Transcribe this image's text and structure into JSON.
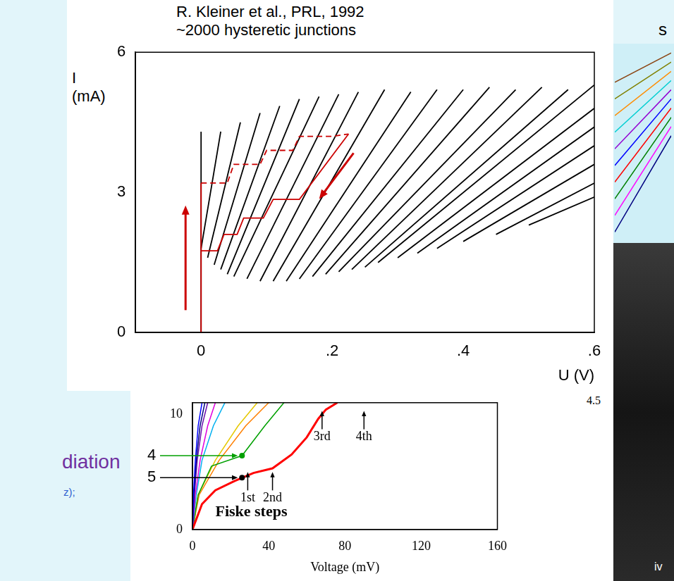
{
  "chart_data": [
    {
      "type": "line",
      "title": "R. Kleiner et al., PRL, 1992",
      "subtitle": "~2000 hysteretic junctions",
      "x_label": "U (V)",
      "y_label": [
        "I",
        "(mA)"
      ],
      "xlim": [
        -0.1,
        0.6
      ],
      "ylim": [
        0,
        6
      ],
      "xticks": [
        0,
        {
          "value": 0.2,
          "label": ".2"
        },
        {
          "value": 0.4,
          "label": ".4"
        },
        {
          "value": 0.6,
          "label": ".6"
        }
      ],
      "yticks": [
        0,
        3,
        6
      ],
      "grid": false,
      "series": [
        {
          "color": "#cc0000",
          "line_style": "solid",
          "marker": "arrow",
          "x": [
            0,
            0
          ],
          "values": [
            0,
            3.2
          ]
        },
        {
          "color": "#cc0000",
          "line_style": "dashed",
          "x": [
            0,
            0.04,
            0.05,
            0.09,
            0.1,
            0.14,
            0.15,
            0.2,
            0.225
          ],
          "values": [
            3.2,
            3.2,
            3.6,
            3.6,
            3.9,
            3.9,
            4.2,
            4.2,
            4.25
          ]
        },
        {
          "color": "#cc0000",
          "line_style": "solid",
          "marker": "arrow",
          "x": [
            0.225,
            0.15,
            0.11,
            0.095,
            0.065,
            0.055,
            0.035,
            0.025,
            0
          ],
          "values": [
            4.25,
            2.85,
            2.85,
            2.45,
            2.45,
            2.1,
            2.1,
            1.75,
            1.75
          ]
        },
        {
          "color": "#000000",
          "x": [
            0,
            0
          ],
          "values": [
            0,
            4.3
          ]
        },
        {
          "color": "#000000",
          "x": [
            0.0,
            0.03
          ],
          "values": [
            1.8,
            4.3
          ]
        },
        {
          "color": "#000000",
          "x": [
            0.01,
            0.06
          ],
          "values": [
            1.6,
            4.5
          ]
        },
        {
          "color": "#000000",
          "x": [
            0.02,
            0.09
          ],
          "values": [
            1.45,
            4.7
          ]
        },
        {
          "color": "#000000",
          "x": [
            0.03,
            0.12
          ],
          "values": [
            1.35,
            4.85
          ]
        },
        {
          "color": "#000000",
          "x": [
            0.04,
            0.15
          ],
          "values": [
            1.25,
            5.0
          ]
        },
        {
          "color": "#000000",
          "x": [
            0.05,
            0.18
          ],
          "values": [
            1.2,
            5.05
          ]
        },
        {
          "color": "#000000",
          "x": [
            0.07,
            0.21
          ],
          "values": [
            1.15,
            5.1
          ]
        },
        {
          "color": "#000000",
          "x": [
            0.09,
            0.24
          ],
          "values": [
            1.1,
            5.15
          ]
        },
        {
          "color": "#000000",
          "x": [
            0.11,
            0.28
          ],
          "values": [
            1.1,
            5.2
          ]
        },
        {
          "color": "#000000",
          "x": [
            0.13,
            0.32
          ],
          "values": [
            1.1,
            5.15
          ]
        },
        {
          "color": "#000000",
          "x": [
            0.15,
            0.36
          ],
          "values": [
            1.15,
            5.2
          ]
        },
        {
          "color": "#000000",
          "x": [
            0.17,
            0.4
          ],
          "values": [
            1.2,
            5.2
          ]
        },
        {
          "color": "#000000",
          "x": [
            0.19,
            0.44
          ],
          "values": [
            1.25,
            5.25
          ]
        },
        {
          "color": "#000000",
          "x": [
            0.21,
            0.48
          ],
          "values": [
            1.3,
            5.2
          ]
        },
        {
          "color": "#000000",
          "x": [
            0.23,
            0.52
          ],
          "values": [
            1.35,
            5.25
          ]
        },
        {
          "color": "#000000",
          "x": [
            0.25,
            0.56
          ],
          "values": [
            1.4,
            5.2
          ]
        },
        {
          "color": "#000000",
          "x": [
            0.27,
            0.6
          ],
          "values": [
            1.5,
            5.3
          ]
        },
        {
          "color": "#000000",
          "x": [
            0.3,
            0.6
          ],
          "values": [
            1.6,
            4.8
          ]
        },
        {
          "color": "#000000",
          "x": [
            0.33,
            0.6
          ],
          "values": [
            1.7,
            4.4
          ]
        },
        {
          "color": "#000000",
          "x": [
            0.36,
            0.6
          ],
          "values": [
            1.8,
            4.0
          ]
        },
        {
          "color": "#000000",
          "x": [
            0.4,
            0.6
          ],
          "values": [
            1.95,
            3.6
          ]
        },
        {
          "color": "#000000",
          "x": [
            0.45,
            0.6
          ],
          "values": [
            2.1,
            3.2
          ]
        },
        {
          "color": "#000000",
          "x": [
            0.5,
            0.6
          ],
          "values": [
            2.3,
            2.9
          ]
        }
      ]
    },
    {
      "type": "line",
      "x_label": "Voltage (mV)",
      "xlim": [
        0,
        160
      ],
      "ylim": [
        0,
        11
      ],
      "xticks": [
        0,
        40,
        80,
        120,
        160
      ],
      "yticks": [
        0,
        10
      ],
      "grid": false,
      "series": [
        {
          "color": "#ff0000",
          "x": [
            0,
            5,
            12,
            22,
            32,
            42,
            52,
            60,
            66,
            70,
            76
          ],
          "values": [
            0,
            2.2,
            3.4,
            4.2,
            4.9,
            5.3,
            6.5,
            8,
            9.6,
            10.4,
            11
          ]
        },
        {
          "color": "#0000ff",
          "x": [
            0,
            0.5,
            1.5,
            3,
            5
          ],
          "values": [
            0,
            3,
            6,
            9,
            11
          ]
        },
        {
          "color": "#000080",
          "x": [
            0,
            0.8,
            2,
            4,
            6.5
          ],
          "values": [
            0,
            3,
            6,
            9,
            11
          ]
        },
        {
          "color": "#6a0dad",
          "x": [
            0,
            1,
            2.5,
            5,
            8
          ],
          "values": [
            0,
            3,
            6,
            9,
            11
          ]
        },
        {
          "color": "#e000e0",
          "x": [
            0,
            1.5,
            4,
            8,
            12
          ],
          "values": [
            0,
            3,
            6,
            9,
            11
          ]
        },
        {
          "color": "#00b0f0",
          "x": [
            0,
            2,
            5,
            11,
            17
          ],
          "values": [
            0,
            3,
            6,
            9,
            11
          ]
        },
        {
          "color": "#00a000",
          "x": [
            0,
            3,
            10,
            26,
            38,
            48
          ],
          "values": [
            0,
            3,
            5.5,
            6.4,
            9,
            11
          ]
        },
        {
          "color": "#e6c800",
          "x": [
            0,
            3,
            12,
            24,
            34
          ],
          "values": [
            0,
            3,
            6,
            9,
            11
          ]
        },
        {
          "color": "#ff7f00",
          "x": [
            0,
            3.5,
            14,
            28,
            40
          ],
          "values": [
            0,
            3,
            6,
            9,
            11
          ]
        }
      ],
      "annotations": [
        {
          "text": "Fiske steps",
          "x": 12,
          "y": 1.5
        }
      ],
      "step_markers": [
        {
          "text": "1st",
          "x": 29,
          "y": 5.1
        },
        {
          "text": "2nd",
          "x": 42,
          "y": 5.1
        },
        {
          "text": "3rd",
          "x": 68,
          "y": 10.4
        },
        {
          "text": "4th",
          "x": 90,
          "y": 10.4
        }
      ],
      "curve_labels": [
        {
          "text": "4",
          "x": 26,
          "y": 6.4,
          "color": "#00a000"
        },
        {
          "text": "5",
          "x": 26,
          "y": 4.5,
          "color": "#000000"
        }
      ]
    },
    {
      "type": "line",
      "xlim": [
        0,
        1
      ],
      "ylim": [
        0,
        10
      ],
      "tick_labels": false,
      "grid": false,
      "series": [
        {
          "color": "#8b4513",
          "x": [
            0,
            1
          ],
          "values": [
            8.1,
            9.6
          ]
        },
        {
          "color": "#808000",
          "x": [
            0,
            1
          ],
          "values": [
            7.25,
            9.13
          ]
        },
        {
          "color": "#ff8c00",
          "x": [
            0,
            1
          ],
          "values": [
            6.4,
            8.66
          ]
        },
        {
          "color": "#00ced1",
          "x": [
            0,
            1
          ],
          "values": [
            5.55,
            8.19
          ]
        },
        {
          "color": "#9400d3",
          "x": [
            0,
            1
          ],
          "values": [
            4.7,
            7.72
          ]
        },
        {
          "color": "#0000ff",
          "x": [
            0,
            1
          ],
          "values": [
            3.85,
            7.25
          ]
        },
        {
          "color": "#ff0000",
          "x": [
            0,
            1
          ],
          "values": [
            3.0,
            6.78
          ]
        },
        {
          "color": "#008000",
          "x": [
            0,
            1
          ],
          "values": [
            2.15,
            6.31
          ]
        },
        {
          "color": "#ff00ff",
          "x": [
            0,
            1
          ],
          "values": [
            1.3,
            5.84
          ]
        },
        {
          "color": "#000080",
          "x": [
            0,
            1
          ],
          "values": [
            0.45,
            5.37
          ]
        }
      ]
    }
  ],
  "fragments": {
    "left_heading": "diation",
    "left_note": "z);",
    "top_right": "s",
    "right_tick": "4.5",
    "photo_label": "iv"
  }
}
